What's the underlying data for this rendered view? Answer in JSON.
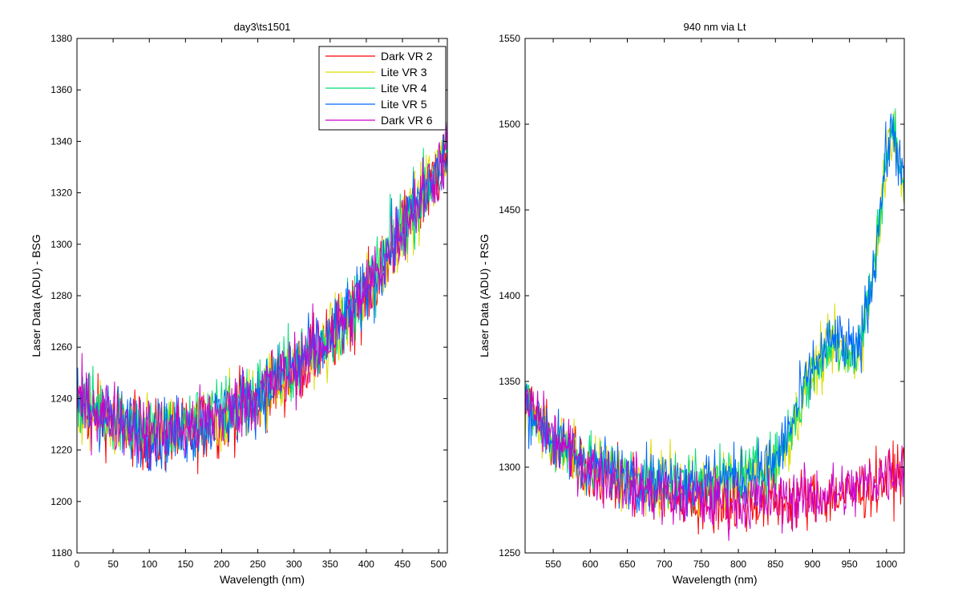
{
  "chart_data": [
    {
      "type": "line",
      "title": "day3\\ts1501",
      "xlabel": "Wavelength (nm)",
      "ylabel": "Laser Data (ADU) - BSG",
      "xlim": [
        0,
        512
      ],
      "ylim": [
        1180,
        1380
      ],
      "xticks": [
        0,
        50,
        100,
        150,
        200,
        250,
        300,
        350,
        400,
        450,
        500
      ],
      "yticks": [
        1180,
        1200,
        1220,
        1240,
        1260,
        1280,
        1300,
        1320,
        1340,
        1360,
        1380
      ],
      "grid": false,
      "legend": {
        "placement": "top-right"
      },
      "series": [
        {
          "name": "Dark VR 2",
          "color": "#ff0000",
          "x": [
            0,
            50,
            100,
            150,
            200,
            250,
            300,
            350,
            400,
            450,
            500,
            512
          ],
          "y": [
            1237,
            1232,
            1225,
            1226,
            1232,
            1240,
            1250,
            1262,
            1280,
            1305,
            1328,
            1334
          ]
        },
        {
          "name": "Lite VR 3",
          "color": "#dddd00",
          "x": [
            0,
            50,
            100,
            150,
            200,
            250,
            300,
            350,
            400,
            450,
            500,
            512
          ],
          "y": [
            1235,
            1231,
            1225,
            1227,
            1233,
            1241,
            1251,
            1263,
            1281,
            1306,
            1329,
            1335
          ]
        },
        {
          "name": "Lite VR 4",
          "color": "#00dd77",
          "x": [
            0,
            50,
            100,
            150,
            200,
            250,
            300,
            350,
            400,
            450,
            500,
            512
          ],
          "y": [
            1240,
            1234,
            1228,
            1229,
            1235,
            1243,
            1253,
            1265,
            1283,
            1308,
            1330,
            1336
          ]
        },
        {
          "name": "Lite VR 5",
          "color": "#0066ff",
          "x": [
            0,
            50,
            100,
            150,
            200,
            250,
            300,
            350,
            400,
            450,
            500,
            512
          ],
          "y": [
            1238,
            1232,
            1226,
            1227,
            1233,
            1241,
            1252,
            1263,
            1281,
            1306,
            1329,
            1335
          ]
        },
        {
          "name": "Dark VR 6",
          "color": "#cc00cc",
          "x": [
            0,
            50,
            100,
            150,
            200,
            250,
            300,
            350,
            400,
            450,
            500,
            512
          ],
          "y": [
            1239,
            1233,
            1227,
            1228,
            1234,
            1242,
            1252,
            1264,
            1282,
            1307,
            1330,
            1336
          ]
        }
      ]
    },
    {
      "type": "line",
      "title": "940 nm via Lt",
      "xlabel": "Wavelength (nm)",
      "ylabel": "Laser Data (ADU) - RSG",
      "xlim": [
        512,
        1024
      ],
      "ylim": [
        1250,
        1550
      ],
      "xticks": [
        550,
        600,
        650,
        700,
        750,
        800,
        850,
        900,
        950,
        1000
      ],
      "yticks": [
        1250,
        1300,
        1350,
        1400,
        1450,
        1500,
        1550
      ],
      "grid": false,
      "legend": null,
      "series": [
        {
          "color": "#ff0000",
          "x": [
            512,
            550,
            600,
            650,
            700,
            750,
            800,
            850,
            900,
            950,
            1000,
            1024
          ],
          "y": [
            1338,
            1315,
            1298,
            1289,
            1283,
            1280,
            1279,
            1280,
            1282,
            1284,
            1293,
            1298
          ]
        },
        {
          "color": "#dddd00",
          "x": [
            512,
            550,
            600,
            650,
            700,
            750,
            800,
            850,
            870,
            900,
            930,
            960,
            980,
            1000,
            1010,
            1024
          ],
          "y": [
            1336,
            1314,
            1300,
            1293,
            1290,
            1290,
            1292,
            1300,
            1320,
            1355,
            1372,
            1362,
            1405,
            1480,
            1502,
            1455
          ]
        },
        {
          "color": "#00dd77",
          "x": [
            512,
            550,
            600,
            650,
            700,
            750,
            800,
            850,
            870,
            900,
            930,
            960,
            980,
            1000,
            1010,
            1024
          ],
          "y": [
            1337,
            1315,
            1301,
            1294,
            1291,
            1291,
            1293,
            1302,
            1322,
            1357,
            1374,
            1364,
            1407,
            1482,
            1498,
            1458
          ]
        },
        {
          "color": "#0066ff",
          "x": [
            512,
            550,
            600,
            650,
            700,
            750,
            800,
            850,
            870,
            900,
            930,
            960,
            980,
            1000,
            1010,
            1024
          ],
          "y": [
            1338,
            1316,
            1302,
            1295,
            1292,
            1292,
            1294,
            1303,
            1323,
            1358,
            1375,
            1365,
            1408,
            1483,
            1497,
            1460
          ]
        },
        {
          "color": "#cc00cc",
          "x": [
            512,
            550,
            600,
            650,
            700,
            750,
            800,
            850,
            900,
            950,
            1000,
            1024
          ],
          "y": [
            1339,
            1316,
            1299,
            1290,
            1284,
            1281,
            1280,
            1281,
            1283,
            1286,
            1296,
            1301
          ]
        }
      ]
    }
  ]
}
